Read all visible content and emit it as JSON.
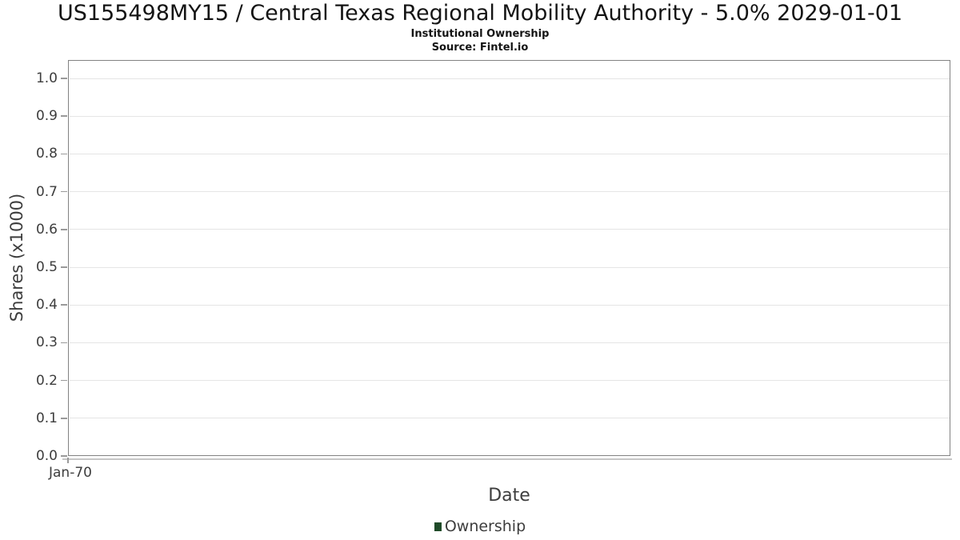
{
  "chart_data": {
    "type": "line",
    "title": "US155498MY15 / Central Texas Regional Mobility Authority - 5.0% 2029-01-01",
    "subtitle": "Institutional Ownership",
    "source": "Source: Fintel.io",
    "xlabel": "Date",
    "ylabel": "Shares (x1000)",
    "x_ticks": [
      "Jan-70"
    ],
    "y_ticks": [
      "1.0",
      "0.9",
      "0.8",
      "0.7",
      "0.6",
      "0.5",
      "0.4",
      "0.3",
      "0.2",
      "0.1",
      "0.0"
    ],
    "ylim": [
      0.0,
      1.05
    ],
    "grid": true,
    "legend": {
      "position": "bottom-center",
      "items": [
        {
          "label": "Ownership",
          "color": "#1e4a28"
        }
      ]
    },
    "series": [
      {
        "name": "Ownership",
        "x": [],
        "values": []
      }
    ]
  },
  "colors": {
    "background": "#ffffff",
    "title_text": "#141414",
    "axis_text": "#3d3d3d",
    "grid": "#e5e5e5",
    "plot_border": "#828282",
    "axis_line": "#c6c6c6",
    "tick_mark": "#9a9a9a",
    "ownership_series": "#1e4a28"
  }
}
